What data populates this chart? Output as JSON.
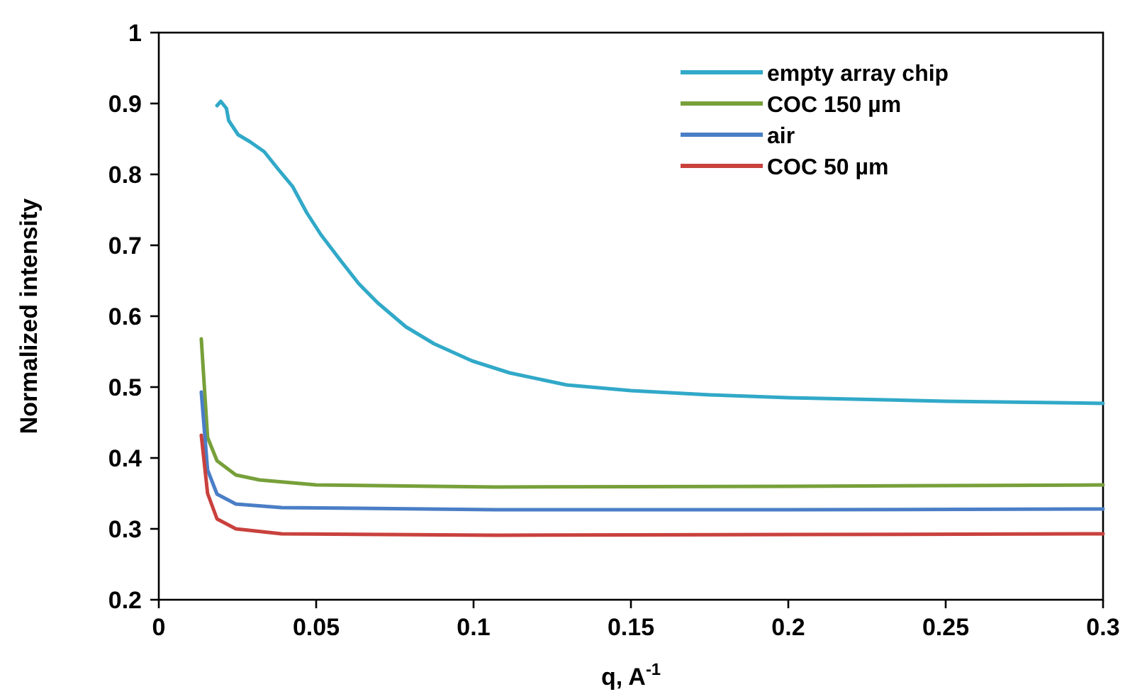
{
  "chart_data": {
    "type": "line",
    "xlabel": "q, A$^{-1}$",
    "ylabel": "Normalized intensity",
    "xlim": [
      0,
      0.3
    ],
    "xticks": [
      0,
      0.05,
      0.1,
      0.15,
      0.2,
      0.25,
      0.3
    ],
    "ylim": [
      0.2,
      1
    ],
    "yticks": [
      0.2,
      0.3,
      0.4,
      0.5,
      0.6,
      0.7,
      0.8,
      0.9,
      1
    ],
    "grid": false,
    "legend": "top right",
    "marker": "none",
    "line_style": "solid",
    "series": [
      {
        "name": "empty array chip",
        "color": "#31a9c8",
        "x": [
          0.0185,
          0.0197,
          0.0215,
          0.0222,
          0.0252,
          0.029,
          0.0335,
          0.038,
          0.0425,
          0.047,
          0.0515,
          0.0575,
          0.0635,
          0.0695,
          0.0785,
          0.0875,
          0.0995,
          0.1115,
          0.1296,
          0.15,
          0.175,
          0.2,
          0.25,
          0.3
        ],
        "values": [
          0.897,
          0.903,
          0.893,
          0.876,
          0.856,
          0.846,
          0.832,
          0.807,
          0.783,
          0.746,
          0.715,
          0.68,
          0.646,
          0.619,
          0.585,
          0.561,
          0.537,
          0.52,
          0.503,
          0.495,
          0.489,
          0.485,
          0.48,
          0.477
        ]
      },
      {
        "name": "COC 150 µm",
        "color": "#77a03a",
        "x": [
          0.0135,
          0.0155,
          0.0185,
          0.0245,
          0.032,
          0.05,
          0.107,
          0.2,
          0.3
        ],
        "values": [
          0.568,
          0.429,
          0.396,
          0.376,
          0.369,
          0.362,
          0.359,
          0.36,
          0.362
        ]
      },
      {
        "name": "air",
        "color": "#4a7ec6",
        "x": [
          0.0135,
          0.0155,
          0.0185,
          0.0245,
          0.039,
          0.107,
          0.2,
          0.3
        ],
        "values": [
          0.493,
          0.383,
          0.349,
          0.335,
          0.33,
          0.327,
          0.327,
          0.328
        ]
      },
      {
        "name": "COC 50 µm",
        "color": "#c9413d",
        "x": [
          0.0135,
          0.0155,
          0.0185,
          0.0245,
          0.039,
          0.107,
          0.2,
          0.3
        ],
        "values": [
          0.432,
          0.35,
          0.314,
          0.3,
          0.293,
          0.291,
          0.292,
          0.293
        ]
      }
    ]
  }
}
